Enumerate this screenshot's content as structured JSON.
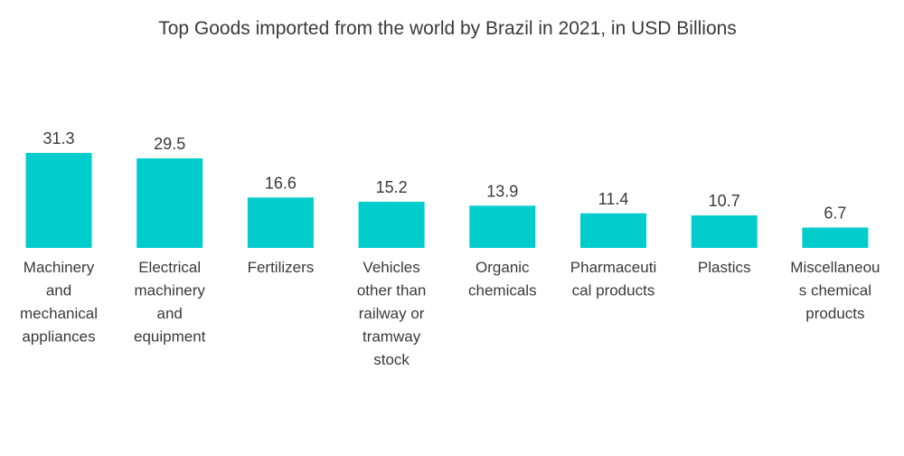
{
  "chart_data": {
    "type": "bar",
    "title": "Top Goods imported from the world by Brazil in 2021, in USD Billions",
    "xlabel": "",
    "ylabel": "",
    "categories": [
      [
        "Machinery",
        "and",
        "mechanical",
        "appliances"
      ],
      [
        "Electrical",
        "machinery",
        "and",
        "equipment"
      ],
      [
        "Fertilizers"
      ],
      [
        "Vehicles",
        "other than",
        "railway or",
        "tramway",
        "stock"
      ],
      [
        "Organic",
        "chemicals"
      ],
      [
        "Pharmaceuti",
        "cal products"
      ],
      [
        "Plastics"
      ],
      [
        "Miscellaneou",
        "s chemical",
        "products"
      ]
    ],
    "values": [
      31.3,
      29.5,
      16.6,
      15.2,
      13.9,
      11.4,
      10.7,
      6.7
    ],
    "value_labels": [
      "31.3",
      "29.5",
      "16.6",
      "15.2",
      "13.9",
      "11.4",
      "10.7",
      "6.7"
    ],
    "ylim": [
      0,
      31.3
    ],
    "grid": false,
    "legend": "none",
    "bar_color": "#00cccc"
  }
}
